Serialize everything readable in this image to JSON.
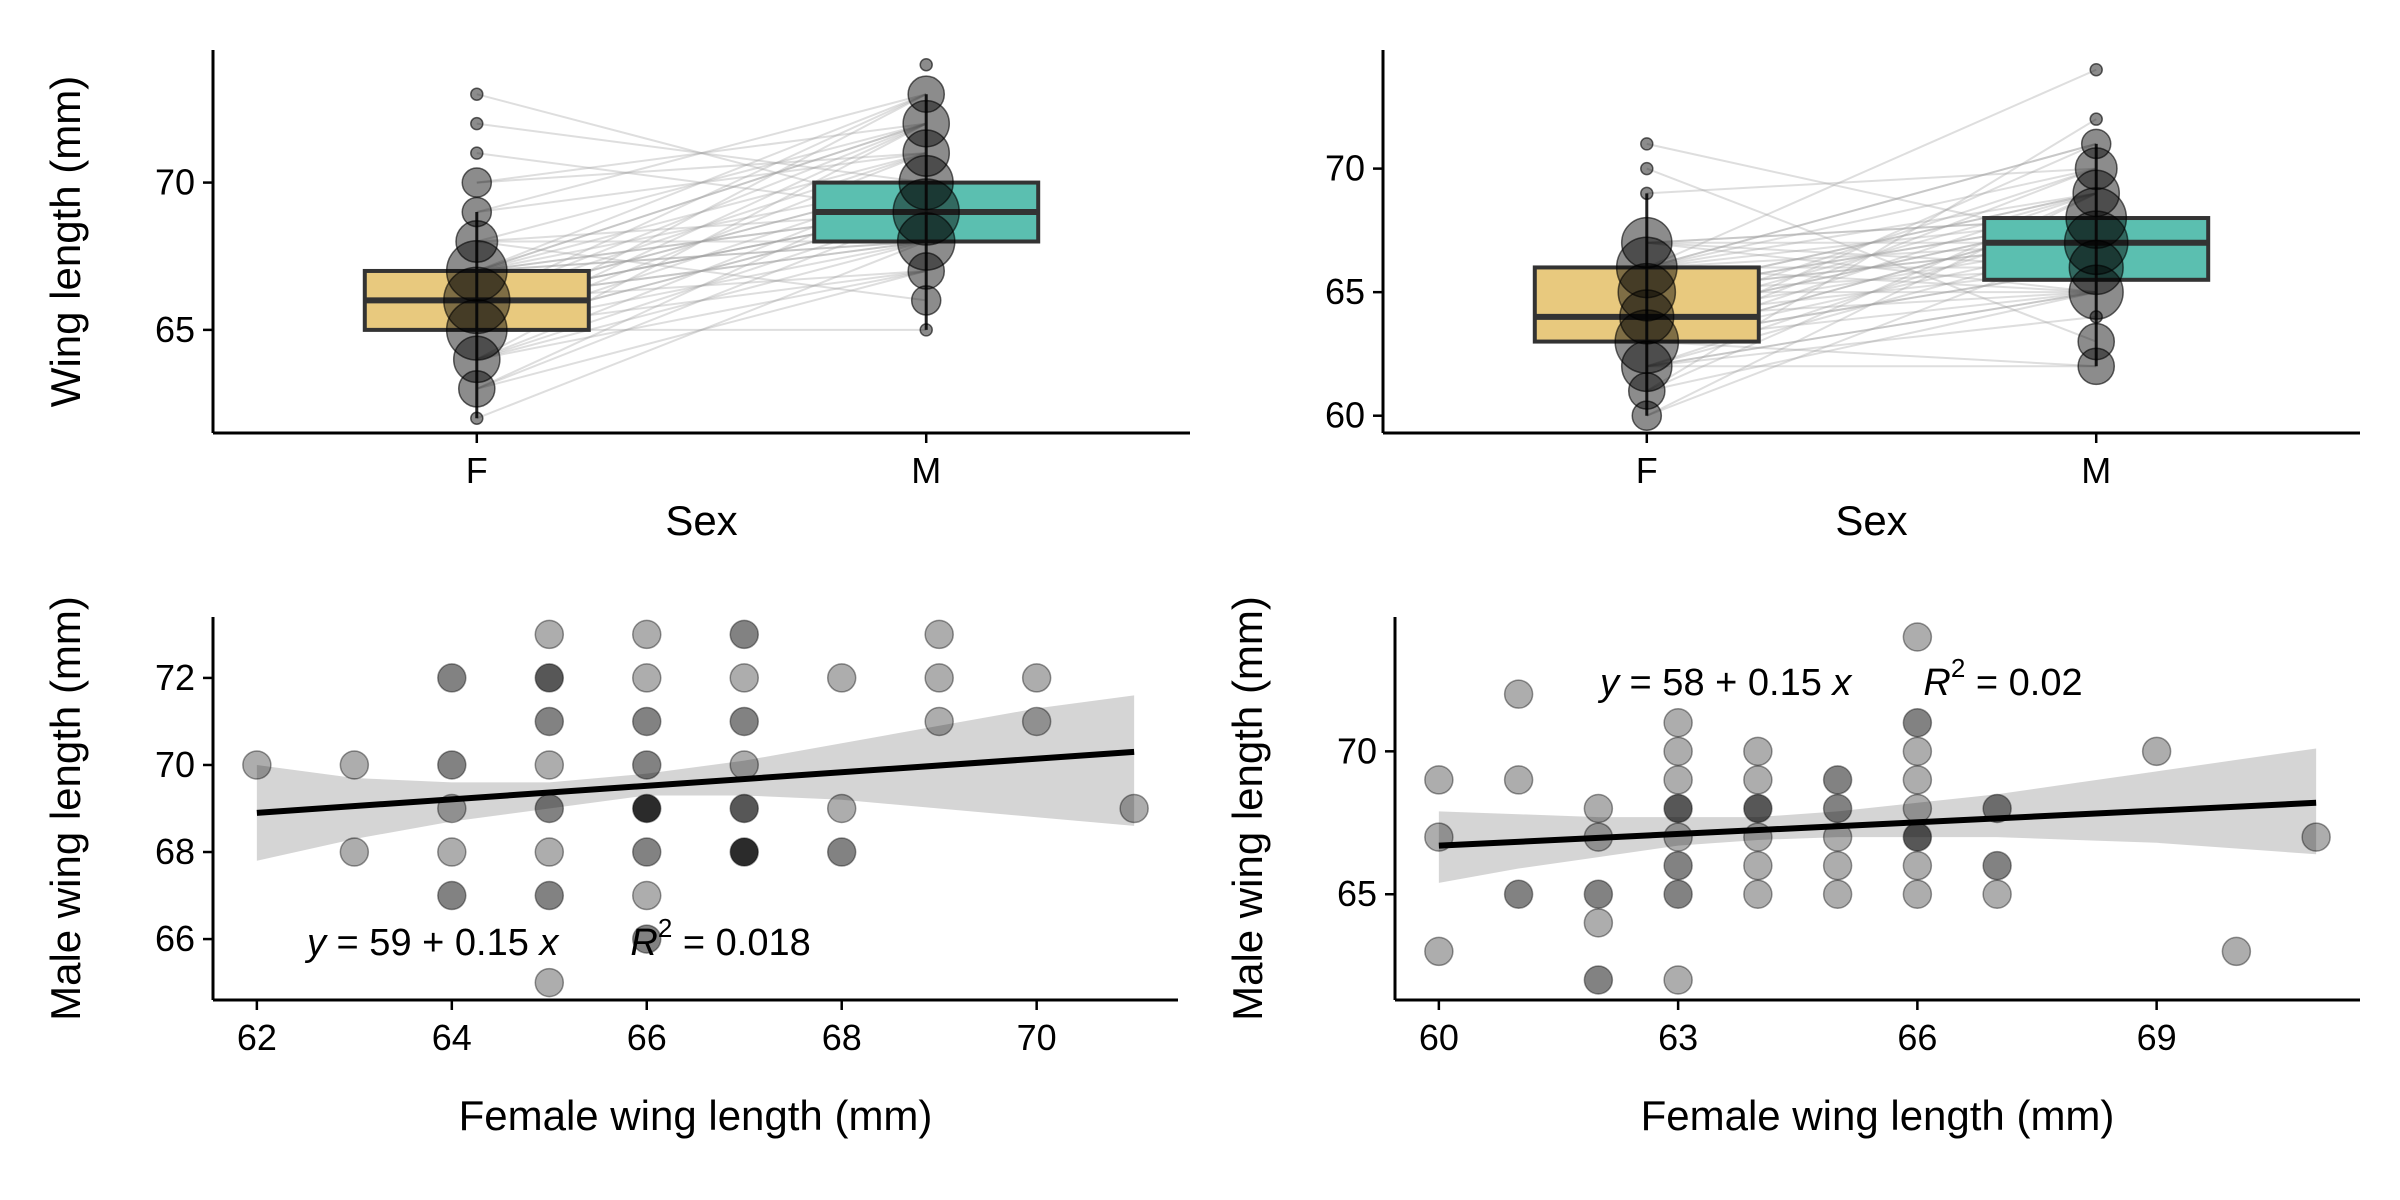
{
  "colors": {
    "female_box": "#E8C97E",
    "male_box": "#5BBFB0",
    "point": "#000000",
    "ribbon": "#D3D3D3",
    "pair_line": "#A0A0A0"
  },
  "chart_data": [
    {
      "type": "box",
      "xlabel": "Sex",
      "ylabel": "Wing length (mm)",
      "categories": [
        "F",
        "M"
      ],
      "ylim": [
        61.5,
        74.5
      ],
      "yticks": [
        65,
        70
      ],
      "boxes": [
        {
          "name": "F",
          "q1": 65,
          "median": 66,
          "q3": 67,
          "whisker_low": 62,
          "whisker_high": 69
        },
        {
          "name": "M",
          "q1": 68,
          "median": 69,
          "q3": 70,
          "whisker_low": 65,
          "whisker_high": 73
        }
      ],
      "counts": [
        {
          "sex": "F",
          "y": 62,
          "n": 1
        },
        {
          "sex": "F",
          "y": 63,
          "n": 3
        },
        {
          "sex": "F",
          "y": 64,
          "n": 5
        },
        {
          "sex": "F",
          "y": 65,
          "n": 9
        },
        {
          "sex": "F",
          "y": 66,
          "n": 11
        },
        {
          "sex": "F",
          "y": 67,
          "n": 9
        },
        {
          "sex": "F",
          "y": 68,
          "n": 4
        },
        {
          "sex": "F",
          "y": 69,
          "n": 2
        },
        {
          "sex": "F",
          "y": 70,
          "n": 2
        },
        {
          "sex": "F",
          "y": 71,
          "n": 1
        },
        {
          "sex": "F",
          "y": 72,
          "n": 1
        },
        {
          "sex": "F",
          "y": 73,
          "n": 1
        },
        {
          "sex": "M",
          "y": 65,
          "n": 1
        },
        {
          "sex": "M",
          "y": 66,
          "n": 2
        },
        {
          "sex": "M",
          "y": 67,
          "n": 3
        },
        {
          "sex": "M",
          "y": 68,
          "n": 8
        },
        {
          "sex": "M",
          "y": 69,
          "n": 11
        },
        {
          "sex": "M",
          "y": 70,
          "n": 7
        },
        {
          "sex": "M",
          "y": 71,
          "n": 5
        },
        {
          "sex": "M",
          "y": 72,
          "n": 5
        },
        {
          "sex": "M",
          "y": 73,
          "n": 3
        },
        {
          "sex": "M",
          "y": 74,
          "n": 1
        }
      ],
      "pairs": [
        [
          62,
          68
        ],
        [
          63,
          70
        ],
        [
          63,
          69
        ],
        [
          63,
          67
        ],
        [
          64,
          72
        ],
        [
          64,
          70
        ],
        [
          64,
          69
        ],
        [
          64,
          68
        ],
        [
          64,
          67
        ],
        [
          65,
          73
        ],
        [
          65,
          72
        ],
        [
          65,
          71
        ],
        [
          65,
          70
        ],
        [
          65,
          69
        ],
        [
          65,
          68
        ],
        [
          65,
          67
        ],
        [
          65,
          65
        ],
        [
          65,
          69
        ],
        [
          66,
          73
        ],
        [
          66,
          72
        ],
        [
          66,
          71
        ],
        [
          66,
          70
        ],
        [
          66,
          69
        ],
        [
          66,
          69
        ],
        [
          66,
          68
        ],
        [
          66,
          68
        ],
        [
          66,
          67
        ],
        [
          66,
          70
        ],
        [
          66,
          69
        ],
        [
          67,
          73
        ],
        [
          67,
          72
        ],
        [
          67,
          71
        ],
        [
          67,
          70
        ],
        [
          67,
          69
        ],
        [
          67,
          68
        ],
        [
          67,
          68
        ],
        [
          67,
          69
        ],
        [
          67,
          72
        ],
        [
          68,
          72
        ],
        [
          68,
          69
        ],
        [
          68,
          68
        ],
        [
          68,
          66
        ],
        [
          69,
          73
        ],
        [
          69,
          71
        ],
        [
          70,
          72
        ],
        [
          70,
          71
        ],
        [
          71,
          69
        ],
        [
          72,
          70
        ],
        [
          73,
          69
        ]
      ]
    },
    {
      "type": "box",
      "xlabel": "Sex",
      "ylabel": "",
      "categories": [
        "F",
        "M"
      ],
      "ylim": [
        59.3,
        74.8
      ],
      "yticks": [
        60,
        65,
        70
      ],
      "boxes": [
        {
          "name": "F",
          "q1": 63,
          "median": 64,
          "q3": 66,
          "whisker_low": 60,
          "whisker_high": 69
        },
        {
          "name": "M",
          "q1": 65.5,
          "median": 67,
          "q3": 68,
          "whisker_low": 62,
          "whisker_high": 71
        }
      ],
      "counts": [
        {
          "sex": "F",
          "y": 60,
          "n": 2
        },
        {
          "sex": "F",
          "y": 61,
          "n": 3
        },
        {
          "sex": "F",
          "y": 62,
          "n": 6
        },
        {
          "sex": "F",
          "y": 63,
          "n": 10
        },
        {
          "sex": "F",
          "y": 64,
          "n": 7
        },
        {
          "sex": "F",
          "y": 65,
          "n": 8
        },
        {
          "sex": "F",
          "y": 66,
          "n": 9
        },
        {
          "sex": "F",
          "y": 67,
          "n": 6
        },
        {
          "sex": "F",
          "y": 69,
          "n": 1
        },
        {
          "sex": "F",
          "y": 70,
          "n": 1
        },
        {
          "sex": "F",
          "y": 71,
          "n": 1
        },
        {
          "sex": "M",
          "y": 62,
          "n": 3
        },
        {
          "sex": "M",
          "y": 63,
          "n": 3
        },
        {
          "sex": "M",
          "y": 64,
          "n": 1
        },
        {
          "sex": "M",
          "y": 65,
          "n": 7
        },
        {
          "sex": "M",
          "y": 66,
          "n": 7
        },
        {
          "sex": "M",
          "y": 67,
          "n": 10
        },
        {
          "sex": "M",
          "y": 68,
          "n": 9
        },
        {
          "sex": "M",
          "y": 69,
          "n": 5
        },
        {
          "sex": "M",
          "y": 70,
          "n": 4
        },
        {
          "sex": "M",
          "y": 71,
          "n": 2
        },
        {
          "sex": "M",
          "y": 72,
          "n": 1
        },
        {
          "sex": "M",
          "y": 74,
          "n": 1
        }
      ],
      "pairs": [
        [
          60,
          69
        ],
        [
          60,
          67
        ],
        [
          61,
          72
        ],
        [
          61,
          69
        ],
        [
          61,
          65
        ],
        [
          62,
          68
        ],
        [
          62,
          67
        ],
        [
          62,
          65
        ],
        [
          62,
          64
        ],
        [
          62,
          62
        ],
        [
          62,
          65
        ],
        [
          63,
          71
        ],
        [
          63,
          70
        ],
        [
          63,
          69
        ],
        [
          63,
          68
        ],
        [
          63,
          68
        ],
        [
          63,
          67
        ],
        [
          63,
          66
        ],
        [
          63,
          65
        ],
        [
          63,
          62
        ],
        [
          63,
          66
        ],
        [
          64,
          70
        ],
        [
          64,
          69
        ],
        [
          64,
          68
        ],
        [
          64,
          68
        ],
        [
          64,
          67
        ],
        [
          64,
          66
        ],
        [
          64,
          65
        ],
        [
          65,
          69
        ],
        [
          65,
          69
        ],
        [
          65,
          68
        ],
        [
          65,
          67
        ],
        [
          65,
          66
        ],
        [
          65,
          65
        ],
        [
          65,
          68
        ],
        [
          65,
          67
        ],
        [
          66,
          74
        ],
        [
          66,
          71
        ],
        [
          66,
          71
        ],
        [
          66,
          70
        ],
        [
          66,
          69
        ],
        [
          66,
          68
        ],
        [
          66,
          67
        ],
        [
          66,
          66
        ],
        [
          66,
          65
        ],
        [
          67,
          68
        ],
        [
          67,
          66
        ],
        [
          67,
          65
        ],
        [
          67,
          68
        ],
        [
          67,
          67
        ],
        [
          69,
          70
        ],
        [
          70,
          63
        ],
        [
          71,
          67
        ]
      ]
    },
    {
      "type": "scatter",
      "xlabel": "Female wing length (mm)",
      "ylabel": "Male wing length (mm)",
      "xlim": [
        61.55,
        71.45
      ],
      "ylim": [
        64.6,
        73.4
      ],
      "xticks": [
        62,
        64,
        66,
        68,
        70
      ],
      "yticks": [
        66,
        68,
        70,
        72
      ],
      "points": [
        {
          "x": 62,
          "y": 70,
          "n": 1
        },
        {
          "x": 63,
          "y": 70,
          "n": 1
        },
        {
          "x": 63,
          "y": 68,
          "n": 1
        },
        {
          "x": 64,
          "y": 72,
          "n": 2
        },
        {
          "x": 64,
          "y": 70,
          "n": 2
        },
        {
          "x": 64,
          "y": 69,
          "n": 1
        },
        {
          "x": 64,
          "y": 68,
          "n": 1
        },
        {
          "x": 64,
          "y": 67,
          "n": 2
        },
        {
          "x": 65,
          "y": 73,
          "n": 1
        },
        {
          "x": 65,
          "y": 72,
          "n": 3
        },
        {
          "x": 65,
          "y": 71,
          "n": 2
        },
        {
          "x": 65,
          "y": 70,
          "n": 1
        },
        {
          "x": 65,
          "y": 69,
          "n": 2
        },
        {
          "x": 65,
          "y": 68,
          "n": 1
        },
        {
          "x": 65,
          "y": 67,
          "n": 2
        },
        {
          "x": 65,
          "y": 65,
          "n": 1
        },
        {
          "x": 66,
          "y": 73,
          "n": 1
        },
        {
          "x": 66,
          "y": 72,
          "n": 1
        },
        {
          "x": 66,
          "y": 71,
          "n": 2
        },
        {
          "x": 66,
          "y": 70,
          "n": 2
        },
        {
          "x": 66,
          "y": 69,
          "n": 4
        },
        {
          "x": 66,
          "y": 68,
          "n": 2
        },
        {
          "x": 66,
          "y": 67,
          "n": 1
        },
        {
          "x": 66,
          "y": 66,
          "n": 2
        },
        {
          "x": 67,
          "y": 73,
          "n": 2
        },
        {
          "x": 67,
          "y": 72,
          "n": 1
        },
        {
          "x": 67,
          "y": 71,
          "n": 2
        },
        {
          "x": 67,
          "y": 70,
          "n": 1
        },
        {
          "x": 67,
          "y": 69,
          "n": 3
        },
        {
          "x": 67,
          "y": 68,
          "n": 4
        },
        {
          "x": 68,
          "y": 72,
          "n": 1
        },
        {
          "x": 68,
          "y": 69,
          "n": 1
        },
        {
          "x": 68,
          "y": 68,
          "n": 2
        },
        {
          "x": 69,
          "y": 73,
          "n": 1
        },
        {
          "x": 69,
          "y": 72,
          "n": 1
        },
        {
          "x": 69,
          "y": 71,
          "n": 1
        },
        {
          "x": 70,
          "y": 72,
          "n": 1
        },
        {
          "x": 70,
          "y": 71,
          "n": 1
        },
        {
          "x": 71,
          "y": 69,
          "n": 1
        }
      ],
      "fit": {
        "x": [
          62,
          71
        ],
        "y": [
          68.9,
          70.3
        ]
      },
      "ribbon": {
        "x": [
          62,
          63,
          64,
          65,
          66,
          67,
          68,
          69,
          70,
          71
        ],
        "lower": [
          67.8,
          68.3,
          68.7,
          69.0,
          69.3,
          69.3,
          69.2,
          69.0,
          68.8,
          68.6
        ],
        "upper": [
          70.0,
          69.7,
          69.6,
          69.6,
          69.8,
          70.1,
          70.5,
          70.9,
          71.3,
          71.6
        ]
      },
      "equation": "y = 59 + 0.15 x",
      "r2_label": "R",
      "r2_exp": "2",
      "r2_value": " = 0.018"
    },
    {
      "type": "scatter",
      "xlabel": "Female wing length (mm)",
      "ylabel": "Male wing length (mm)",
      "xlim": [
        59.45,
        71.55
      ],
      "ylim": [
        61.3,
        74.7
      ],
      "xticks": [
        60,
        63,
        66,
        69
      ],
      "yticks": [
        65,
        70
      ],
      "points": [
        {
          "x": 60,
          "y": 69,
          "n": 1
        },
        {
          "x": 60,
          "y": 67,
          "n": 1
        },
        {
          "x": 60,
          "y": 63,
          "n": 1
        },
        {
          "x": 61,
          "y": 72,
          "n": 1
        },
        {
          "x": 61,
          "y": 69,
          "n": 1
        },
        {
          "x": 61,
          "y": 65,
          "n": 2
        },
        {
          "x": 62,
          "y": 68,
          "n": 1
        },
        {
          "x": 62,
          "y": 67,
          "n": 1
        },
        {
          "x": 62,
          "y": 65,
          "n": 2
        },
        {
          "x": 62,
          "y": 64,
          "n": 1
        },
        {
          "x": 62,
          "y": 62,
          "n": 2
        },
        {
          "x": 63,
          "y": 71,
          "n": 1
        },
        {
          "x": 63,
          "y": 70,
          "n": 1
        },
        {
          "x": 63,
          "y": 69,
          "n": 1
        },
        {
          "x": 63,
          "y": 68,
          "n": 3
        },
        {
          "x": 63,
          "y": 67,
          "n": 1
        },
        {
          "x": 63,
          "y": 66,
          "n": 2
        },
        {
          "x": 63,
          "y": 65,
          "n": 2
        },
        {
          "x": 63,
          "y": 62,
          "n": 1
        },
        {
          "x": 64,
          "y": 70,
          "n": 1
        },
        {
          "x": 64,
          "y": 69,
          "n": 1
        },
        {
          "x": 64,
          "y": 68,
          "n": 3
        },
        {
          "x": 64,
          "y": 67,
          "n": 1
        },
        {
          "x": 64,
          "y": 66,
          "n": 1
        },
        {
          "x": 64,
          "y": 65,
          "n": 1
        },
        {
          "x": 65,
          "y": 69,
          "n": 2
        },
        {
          "x": 65,
          "y": 68,
          "n": 2
        },
        {
          "x": 65,
          "y": 67,
          "n": 1
        },
        {
          "x": 65,
          "y": 66,
          "n": 1
        },
        {
          "x": 65,
          "y": 65,
          "n": 1
        },
        {
          "x": 66,
          "y": 74,
          "n": 1
        },
        {
          "x": 66,
          "y": 71,
          "n": 2
        },
        {
          "x": 66,
          "y": 70,
          "n": 1
        },
        {
          "x": 66,
          "y": 69,
          "n": 1
        },
        {
          "x": 66,
          "y": 68,
          "n": 1
        },
        {
          "x": 66,
          "y": 67,
          "n": 3
        },
        {
          "x": 66,
          "y": 66,
          "n": 1
        },
        {
          "x": 66,
          "y": 65,
          "n": 1
        },
        {
          "x": 67,
          "y": 68,
          "n": 2
        },
        {
          "x": 67,
          "y": 66,
          "n": 2
        },
        {
          "x": 67,
          "y": 65,
          "n": 1
        },
        {
          "x": 69,
          "y": 70,
          "n": 1
        },
        {
          "x": 70,
          "y": 63,
          "n": 1
        },
        {
          "x": 71,
          "y": 67,
          "n": 1
        }
      ],
      "fit": {
        "x": [
          60,
          71
        ],
        "y": [
          66.7,
          68.2
        ]
      },
      "ribbon": {
        "x": [
          60,
          61,
          62,
          63,
          64,
          65,
          66,
          67,
          68,
          69,
          70,
          71
        ],
        "lower": [
          65.4,
          65.9,
          66.3,
          66.7,
          66.9,
          67.0,
          67.0,
          67.0,
          66.9,
          66.8,
          66.6,
          66.4
        ],
        "upper": [
          67.9,
          67.8,
          67.7,
          67.7,
          67.7,
          67.9,
          68.2,
          68.5,
          68.9,
          69.3,
          69.7,
          70.1
        ]
      },
      "equation": "y = 58 + 0.15 x",
      "r2_label": "R",
      "r2_exp": "2",
      "r2_value": " = 0.02"
    }
  ]
}
